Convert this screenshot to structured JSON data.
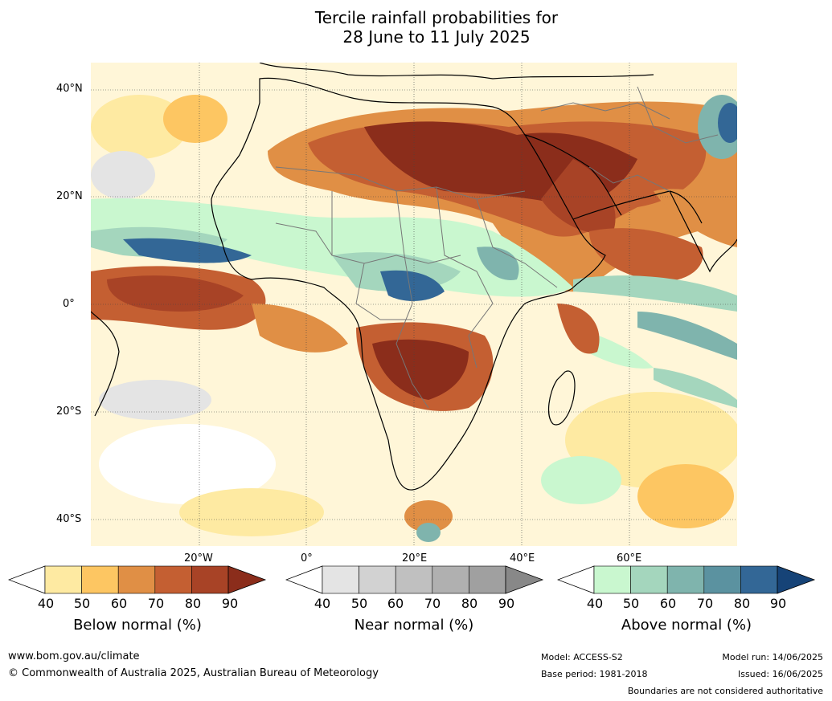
{
  "title": [
    "Tercile rainfall probabilities for",
    "28 June to 11 July 2025"
  ],
  "lat_labels": [
    "40°N",
    "20°N",
    "0°",
    "20°S",
    "40°S"
  ],
  "lon_labels": [
    "20°W",
    "0°",
    "20°E",
    "40°E",
    "60°E"
  ],
  "legends": [
    {
      "title": "Below normal (%)",
      "ticks": [
        "40",
        "50",
        "60",
        "70",
        "80",
        "90"
      ],
      "colors": [
        "#ffffff",
        "#feeaa2",
        "#fdc662",
        "#e08f45",
        "#c45f32",
        "#a84326",
        "#8b2d1b"
      ]
    },
    {
      "title": "Near normal (%)",
      "ticks": [
        "40",
        "50",
        "60",
        "70",
        "80",
        "90"
      ],
      "colors": [
        "#ffffff",
        "#e4e4e4",
        "#d2d2d2",
        "#c0c0c0",
        "#b0b0b0",
        "#a0a0a0",
        "#888888"
      ]
    },
    {
      "title": "Above normal (%)",
      "ticks": [
        "40",
        "50",
        "60",
        "70",
        "80",
        "90"
      ],
      "colors": [
        "#ffffff",
        "#c9f7cf",
        "#a4d6bd",
        "#7fb4ad",
        "#5b92a0",
        "#336796",
        "#164377"
      ]
    }
  ],
  "footer": {
    "url": "www.bom.gov.au/climate",
    "copyright": "© Commonwealth of Australia 2025, Australian Bureau of Meteorology",
    "model": "Model: ACCESS-S2",
    "base_period": "Base period: 1981-2018",
    "model_run": "Model run: 14/06/2025",
    "issued": "Issued: 16/06/2025",
    "boundaries": "Boundaries are not considered authoritative"
  }
}
